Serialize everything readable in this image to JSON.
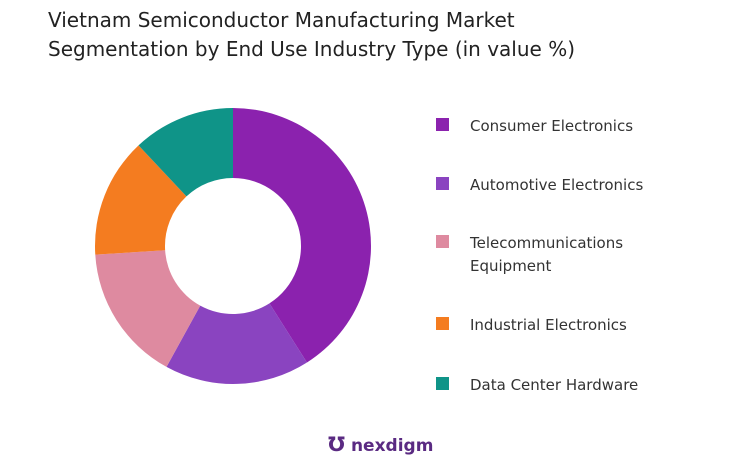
{
  "chart_data": {
    "type": "donut",
    "title": "Vietnam Semiconductor Manufacturing Market Segmentation by  End Use Industry Type (in value %)",
    "categories": [
      "Consumer Electronics",
      "Automotive Electronics",
      "Telecommunications Equipment",
      "Industrial Electronics",
      "Data Center Hardware"
    ],
    "values": [
      41,
      17,
      16,
      14,
      12
    ],
    "colors": [
      "#8b22ae",
      "#8a44c0",
      "#de8aa0",
      "#f47c20",
      "#0f9488"
    ],
    "logo": "nexdigm"
  }
}
